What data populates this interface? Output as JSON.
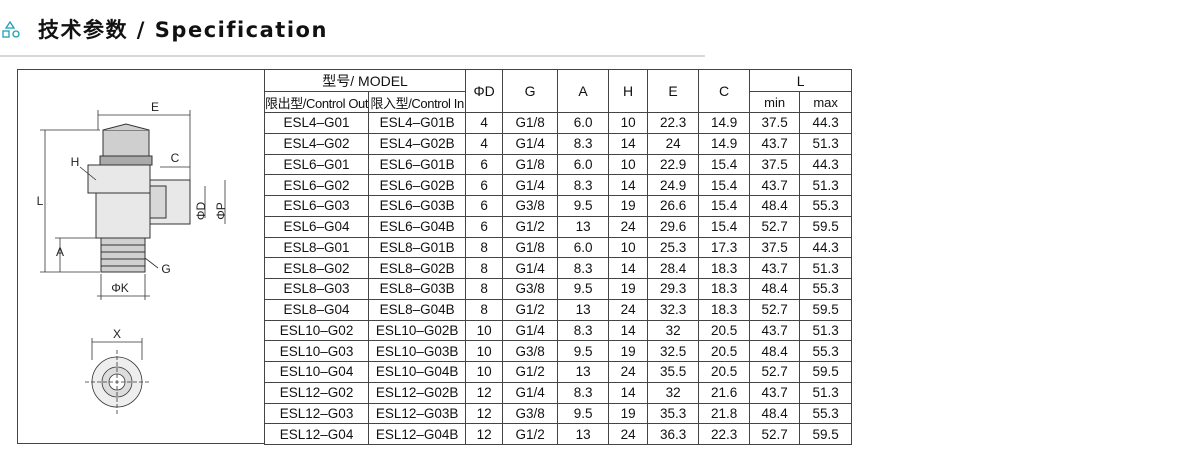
{
  "header": {
    "title": "技术参数 / Specification"
  },
  "diagram": {
    "labels": [
      "E",
      "H",
      "C",
      "L",
      "ΦD",
      "ΦP",
      "A",
      "G",
      "ΦK",
      "X"
    ]
  },
  "table": {
    "header_row1": [
      "型号/ MODEL",
      "ΦD",
      "G",
      "A",
      "H",
      "E",
      "C",
      "L"
    ],
    "header_row2": [
      "限出型/Control Out",
      "限入型/Control In",
      "min",
      "max"
    ],
    "rows": [
      [
        "ESL4–G01",
        "ESL4–G01B",
        "4",
        "G1/8",
        "6.0",
        "10",
        "22.3",
        "14.9",
        "37.5",
        "44.3"
      ],
      [
        "ESL4–G02",
        "ESL4–G02B",
        "4",
        "G1/4",
        "8.3",
        "14",
        "24",
        "14.9",
        "43.7",
        "51.3"
      ],
      [
        "ESL6–G01",
        "ESL6–G01B",
        "6",
        "G1/8",
        "6.0",
        "10",
        "22.9",
        "15.4",
        "37.5",
        "44.3"
      ],
      [
        "ESL6–G02",
        "ESL6–G02B",
        "6",
        "G1/4",
        "8.3",
        "14",
        "24.9",
        "15.4",
        "43.7",
        "51.3"
      ],
      [
        "ESL6–G03",
        "ESL6–G03B",
        "6",
        "G3/8",
        "9.5",
        "19",
        "26.6",
        "15.4",
        "48.4",
        "55.3"
      ],
      [
        "ESL6–G04",
        "ESL6–G04B",
        "6",
        "G1/2",
        "13",
        "24",
        "29.6",
        "15.4",
        "52.7",
        "59.5"
      ],
      [
        "ESL8–G01",
        "ESL8–G01B",
        "8",
        "G1/8",
        "6.0",
        "10",
        "25.3",
        "17.3",
        "37.5",
        "44.3"
      ],
      [
        "ESL8–G02",
        "ESL8–G02B",
        "8",
        "G1/4",
        "8.3",
        "14",
        "28.4",
        "18.3",
        "43.7",
        "51.3"
      ],
      [
        "ESL8–G03",
        "ESL8–G03B",
        "8",
        "G3/8",
        "9.5",
        "19",
        "29.3",
        "18.3",
        "48.4",
        "55.3"
      ],
      [
        "ESL8–G04",
        "ESL8–G04B",
        "8",
        "G1/2",
        "13",
        "24",
        "32.3",
        "18.3",
        "52.7",
        "59.5"
      ],
      [
        "ESL10–G02",
        "ESL10–G02B",
        "10",
        "G1/4",
        "8.3",
        "14",
        "32",
        "20.5",
        "43.7",
        "51.3"
      ],
      [
        "ESL10–G03",
        "ESL10–G03B",
        "10",
        "G3/8",
        "9.5",
        "19",
        "32.5",
        "20.5",
        "48.4",
        "55.3"
      ],
      [
        "ESL10–G04",
        "ESL10–G04B",
        "10",
        "G1/2",
        "13",
        "24",
        "35.5",
        "20.5",
        "52.7",
        "59.5"
      ],
      [
        "ESL12–G02",
        "ESL12–G02B",
        "12",
        "G1/4",
        "8.3",
        "14",
        "32",
        "21.6",
        "43.7",
        "51.3"
      ],
      [
        "ESL12–G03",
        "ESL12–G03B",
        "12",
        "G3/8",
        "9.5",
        "19",
        "35.3",
        "21.8",
        "48.4",
        "55.3"
      ],
      [
        "ESL12–G04",
        "ESL12–G04B",
        "12",
        "G1/2",
        "13",
        "24",
        "36.3",
        "22.3",
        "52.7",
        "59.5"
      ]
    ]
  }
}
